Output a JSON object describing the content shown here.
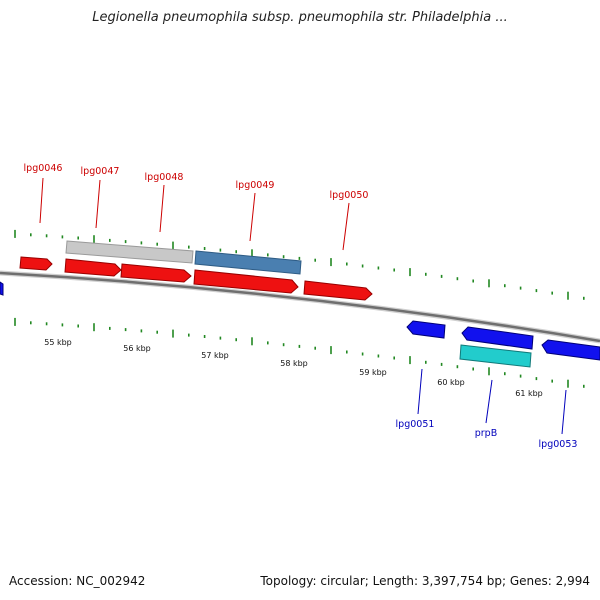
{
  "title": "Legionella pneumophila subsp. pneumophila str. Philadelphia ...",
  "footer": {
    "accession": "Accession: NC_002942",
    "summary": "Topology: circular; Length: 3,397,754 bp; Genes: 2,994"
  },
  "colors": {
    "forward_gene": "#ee1111",
    "reverse_gene": "#1111ee",
    "reverse_gene_cyan": "#22cccc",
    "gray_feature": "#c8c8c8",
    "steelblue_feature": "#4a7fb0",
    "forward_label": "#cc0000",
    "reverse_label": "#0000bb",
    "backbone": "#777777",
    "ticks": "#228822"
  },
  "scale": {
    "kbp_labels": [
      "55 kbp",
      "56 kbp",
      "57 kbp",
      "58 kbp",
      "59 kbp",
      "60 kbp",
      "61 kbp"
    ]
  },
  "genes": {
    "forward": [
      "lpg0046",
      "lpg0047",
      "lpg0048",
      "lpg0049",
      "lpg0050"
    ],
    "reverse": [
      "lpg0051",
      "prpB",
      "lpg0053"
    ]
  }
}
